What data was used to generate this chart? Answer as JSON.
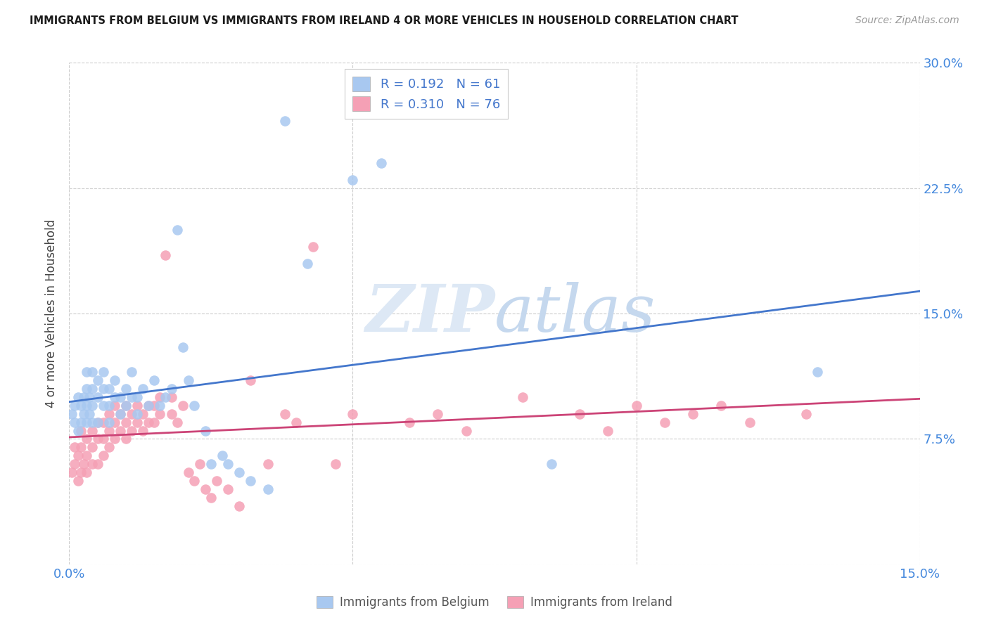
{
  "title": "IMMIGRANTS FROM BELGIUM VS IMMIGRANTS FROM IRELAND 4 OR MORE VEHICLES IN HOUSEHOLD CORRELATION CHART",
  "source": "Source: ZipAtlas.com",
  "ylabel": "4 or more Vehicles in Household",
  "xlim": [
    0.0,
    0.15
  ],
  "ylim": [
    0.0,
    0.3
  ],
  "xticks": [
    0.0,
    0.05,
    0.1,
    0.15
  ],
  "xticklabels": [
    "0.0%",
    "",
    "",
    "15.0%"
  ],
  "yticks": [
    0.0,
    0.075,
    0.15,
    0.225,
    0.3
  ],
  "yticklabels": [
    "",
    "7.5%",
    "15.0%",
    "22.5%",
    "30.0%"
  ],
  "grid_color": "#cccccc",
  "background_color": "#ffffff",
  "belgium_color": "#a8c8f0",
  "ireland_color": "#f5a0b5",
  "belgium_line_color": "#4477cc",
  "ireland_line_color": "#cc4477",
  "legend_R_belgium": "R = 0.192",
  "legend_N_belgium": "N = 61",
  "legend_R_ireland": "R = 0.310",
  "legend_N_ireland": "N = 76",
  "watermark_zip": "ZIP",
  "watermark_atlas": "atlas",
  "belgium_x": [
    0.0005,
    0.001,
    0.001,
    0.0015,
    0.0015,
    0.002,
    0.002,
    0.0025,
    0.0025,
    0.003,
    0.003,
    0.003,
    0.003,
    0.0035,
    0.0035,
    0.004,
    0.004,
    0.004,
    0.004,
    0.005,
    0.005,
    0.005,
    0.006,
    0.006,
    0.006,
    0.007,
    0.007,
    0.007,
    0.008,
    0.008,
    0.009,
    0.009,
    0.01,
    0.01,
    0.011,
    0.011,
    0.012,
    0.012,
    0.013,
    0.014,
    0.015,
    0.016,
    0.017,
    0.018,
    0.019,
    0.02,
    0.021,
    0.022,
    0.024,
    0.025,
    0.027,
    0.028,
    0.03,
    0.032,
    0.035,
    0.038,
    0.042,
    0.05,
    0.055,
    0.085,
    0.132
  ],
  "belgium_y": [
    0.09,
    0.095,
    0.085,
    0.1,
    0.08,
    0.095,
    0.085,
    0.09,
    0.1,
    0.085,
    0.095,
    0.105,
    0.115,
    0.09,
    0.1,
    0.085,
    0.095,
    0.105,
    0.115,
    0.085,
    0.1,
    0.11,
    0.095,
    0.105,
    0.115,
    0.085,
    0.095,
    0.105,
    0.1,
    0.11,
    0.09,
    0.1,
    0.095,
    0.105,
    0.1,
    0.115,
    0.09,
    0.1,
    0.105,
    0.095,
    0.11,
    0.095,
    0.1,
    0.105,
    0.2,
    0.13,
    0.11,
    0.095,
    0.08,
    0.06,
    0.065,
    0.06,
    0.055,
    0.05,
    0.045,
    0.265,
    0.18,
    0.23,
    0.24,
    0.06,
    0.115
  ],
  "ireland_x": [
    0.0005,
    0.001,
    0.001,
    0.0015,
    0.0015,
    0.002,
    0.002,
    0.002,
    0.0025,
    0.003,
    0.003,
    0.003,
    0.004,
    0.004,
    0.004,
    0.005,
    0.005,
    0.005,
    0.006,
    0.006,
    0.006,
    0.007,
    0.007,
    0.007,
    0.008,
    0.008,
    0.008,
    0.009,
    0.009,
    0.01,
    0.01,
    0.01,
    0.011,
    0.011,
    0.012,
    0.012,
    0.013,
    0.013,
    0.014,
    0.014,
    0.015,
    0.015,
    0.016,
    0.016,
    0.017,
    0.018,
    0.018,
    0.019,
    0.02,
    0.021,
    0.022,
    0.023,
    0.024,
    0.025,
    0.026,
    0.028,
    0.03,
    0.032,
    0.035,
    0.038,
    0.04,
    0.043,
    0.047,
    0.05,
    0.06,
    0.065,
    0.07,
    0.08,
    0.09,
    0.095,
    0.1,
    0.105,
    0.11,
    0.115,
    0.12,
    0.13
  ],
  "ireland_y": [
    0.055,
    0.06,
    0.07,
    0.05,
    0.065,
    0.055,
    0.07,
    0.08,
    0.06,
    0.055,
    0.065,
    0.075,
    0.06,
    0.07,
    0.08,
    0.06,
    0.075,
    0.085,
    0.065,
    0.075,
    0.085,
    0.07,
    0.08,
    0.09,
    0.075,
    0.085,
    0.095,
    0.08,
    0.09,
    0.075,
    0.085,
    0.095,
    0.08,
    0.09,
    0.085,
    0.095,
    0.08,
    0.09,
    0.085,
    0.095,
    0.085,
    0.095,
    0.09,
    0.1,
    0.185,
    0.09,
    0.1,
    0.085,
    0.095,
    0.055,
    0.05,
    0.06,
    0.045,
    0.04,
    0.05,
    0.045,
    0.035,
    0.11,
    0.06,
    0.09,
    0.085,
    0.19,
    0.06,
    0.09,
    0.085,
    0.09,
    0.08,
    0.1,
    0.09,
    0.08,
    0.095,
    0.085,
    0.09,
    0.095,
    0.085,
    0.09
  ]
}
